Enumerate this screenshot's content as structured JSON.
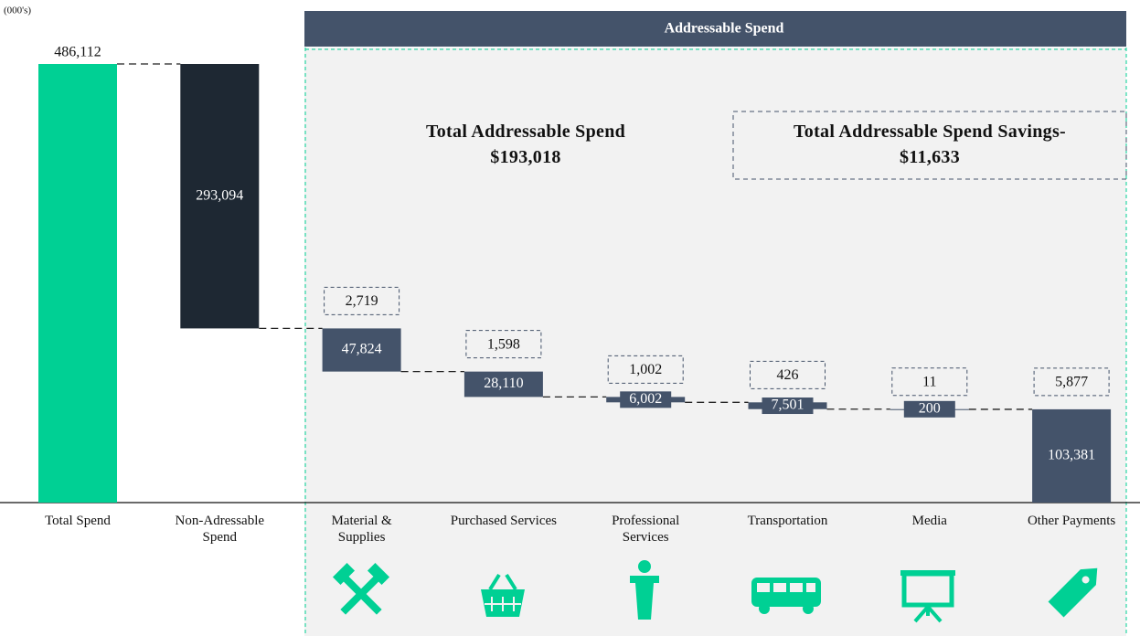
{
  "chart_data": {
    "type": "waterfall",
    "unit_label": "(000's)",
    "header": "Addressable Spend",
    "categories": [
      "Total Spend",
      "Non-Adressable Spend",
      "Material & Supplies",
      "Purchased Services",
      "Professional Services",
      "Transportation",
      "Media",
      "Other Payments"
    ],
    "values": [
      486112,
      293094,
      47824,
      28110,
      6002,
      7501,
      200,
      103381
    ],
    "value_labels": [
      "486,112",
      "293,094",
      "47,824",
      "28,110",
      "6,002",
      "7,501",
      "200",
      "103,381"
    ],
    "colors": [
      "#00d094",
      "#1e2833",
      "#44536a",
      "#44536a",
      "#44536a",
      "#44536a",
      "#44536a",
      "#44536a"
    ],
    "savings": [
      2719,
      1598,
      1002,
      426,
      11,
      5877
    ],
    "savings_labels": [
      "2,719",
      "1,598",
      "1,002",
      "426",
      "11",
      "5,877"
    ],
    "annotations": [
      {
        "title": "Total Addressable Spend",
        "value": "$193,018"
      },
      {
        "title": "Total Addressable Spend Savings-",
        "value": "$11,633"
      }
    ]
  }
}
